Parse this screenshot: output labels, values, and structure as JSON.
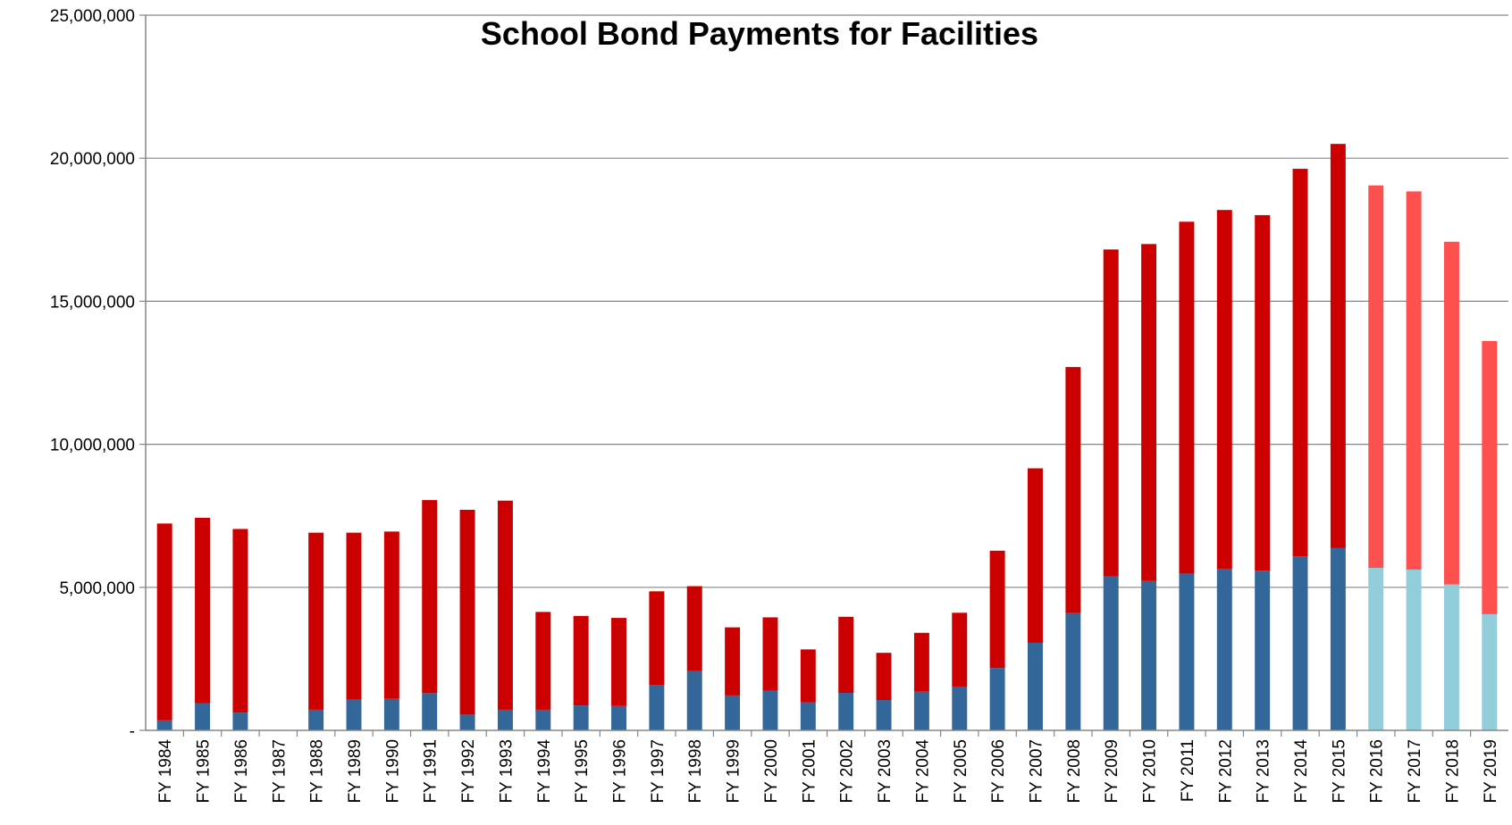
{
  "chart_data": {
    "type": "bar",
    "stacked": true,
    "title": "School Bond Payments for Facilities",
    "xlabel": "",
    "ylabel": "",
    "ylim": [
      0,
      25000000
    ],
    "yticks": [
      0,
      5000000,
      10000000,
      15000000,
      20000000,
      25000000
    ],
    "ytick_labels": [
      "-",
      "5,000,000",
      "10,000,000",
      "15,000,000",
      "20,000,000",
      "25,000,000"
    ],
    "grid": "horizontal",
    "legend": "none",
    "categories": [
      "FY 1984",
      "FY 1985",
      "FY 1986",
      "FY 1987",
      "FY 1988",
      "FY 1989",
      "FY 1990",
      "FY 1991",
      "FY 1992",
      "FY 1993",
      "FY 1994",
      "FY 1995",
      "FY 1996",
      "FY 1997",
      "FY 1998",
      "FY 1999",
      "FY 2000",
      "FY 2001",
      "FY 2002",
      "FY 2003",
      "FY 2004",
      "FY 2005",
      "FY 2006",
      "FY 2007",
      "FY 2008",
      "FY 2009",
      "FY 2010",
      "FY 2011",
      "FY 2012",
      "FY 2013",
      "FY 2014",
      "FY 2015",
      "FY 2016",
      "FY 2017",
      "FY 2018",
      "FY 2019"
    ],
    "projected_from_index": 32,
    "series": [
      {
        "values": [
          350000,
          950000,
          620000,
          0,
          720000,
          1070000,
          1100000,
          1300000,
          550000,
          720000,
          720000,
          870000,
          850000,
          1580000,
          2070000,
          1220000,
          1380000,
          980000,
          1310000,
          1060000,
          1350000,
          1530000,
          2180000,
          3060000,
          4100000,
          5380000,
          5220000,
          5480000,
          5650000,
          5580000,
          6080000,
          6370000,
          5680000,
          5620000,
          5100000,
          4060000
        ],
        "color": "#336699",
        "projected_color": "#92CDDC"
      },
      {
        "values": [
          6880000,
          6480000,
          6420000,
          0,
          6190000,
          5840000,
          5850000,
          6750000,
          7160000,
          7310000,
          3420000,
          3130000,
          3080000,
          3280000,
          2970000,
          2380000,
          2570000,
          1850000,
          2660000,
          1650000,
          2060000,
          2580000,
          4100000,
          6100000,
          8600000,
          11430000,
          11780000,
          12300000,
          12540000,
          12430000,
          13550000,
          14130000,
          13370000,
          13220000,
          11980000,
          9550000
        ],
        "color": "#CC0000",
        "projected_color": "#FF5050"
      }
    ]
  }
}
